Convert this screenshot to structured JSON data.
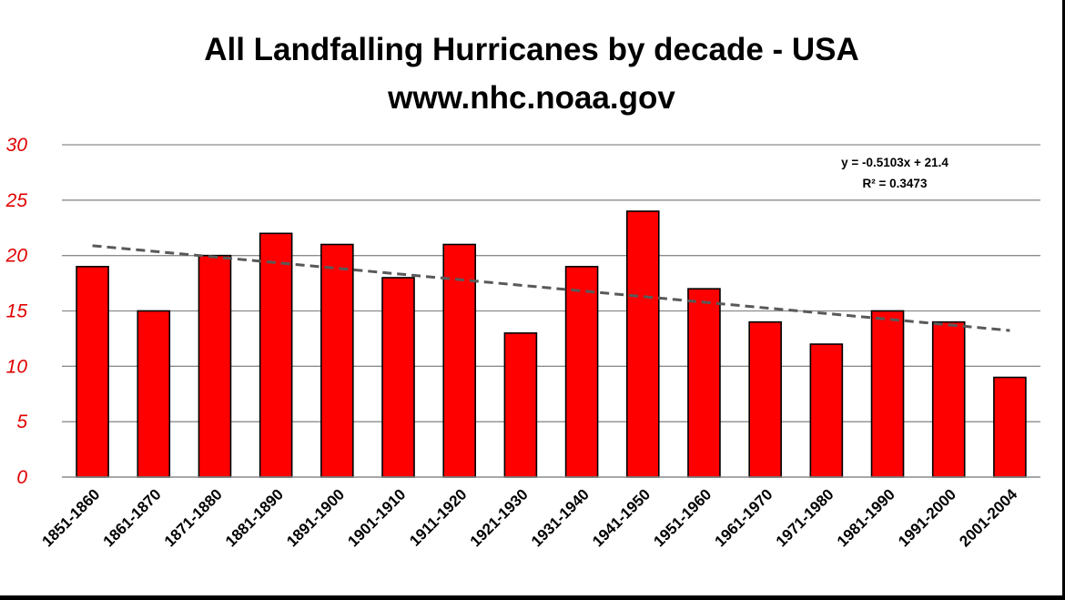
{
  "chart_data": {
    "type": "bar",
    "title": "All Landfalling Hurricanes by decade - USA",
    "subtitle": "www.nhc.noaa.gov",
    "categories": [
      "1851-1860",
      "1861-1870",
      "1871-1880",
      "1881-1890",
      "1891-1900",
      "1901-1910",
      "1911-1920",
      "1921-1930",
      "1931-1940",
      "1941-1950",
      "1951-1960",
      "1961-1970",
      "1971-1980",
      "1981-1990",
      "1991-2000",
      "2001-2004"
    ],
    "values": [
      19,
      15,
      20,
      22,
      21,
      18,
      21,
      13,
      19,
      24,
      17,
      14,
      12,
      15,
      14,
      9
    ],
    "ylim": [
      0,
      30
    ],
    "yticks": [
      0,
      5,
      10,
      15,
      20,
      25,
      30
    ],
    "xlabel": "",
    "ylabel": "",
    "grid": true,
    "bar_color": "#ff0000",
    "tick_color": "#e00000",
    "trendline": {
      "type": "linear",
      "slope": -0.5103,
      "intercept": 21.4,
      "color": "#595959",
      "equation_label": "y = -0.5103x + 21.4",
      "r2_label": "R² = 0.3473"
    }
  }
}
